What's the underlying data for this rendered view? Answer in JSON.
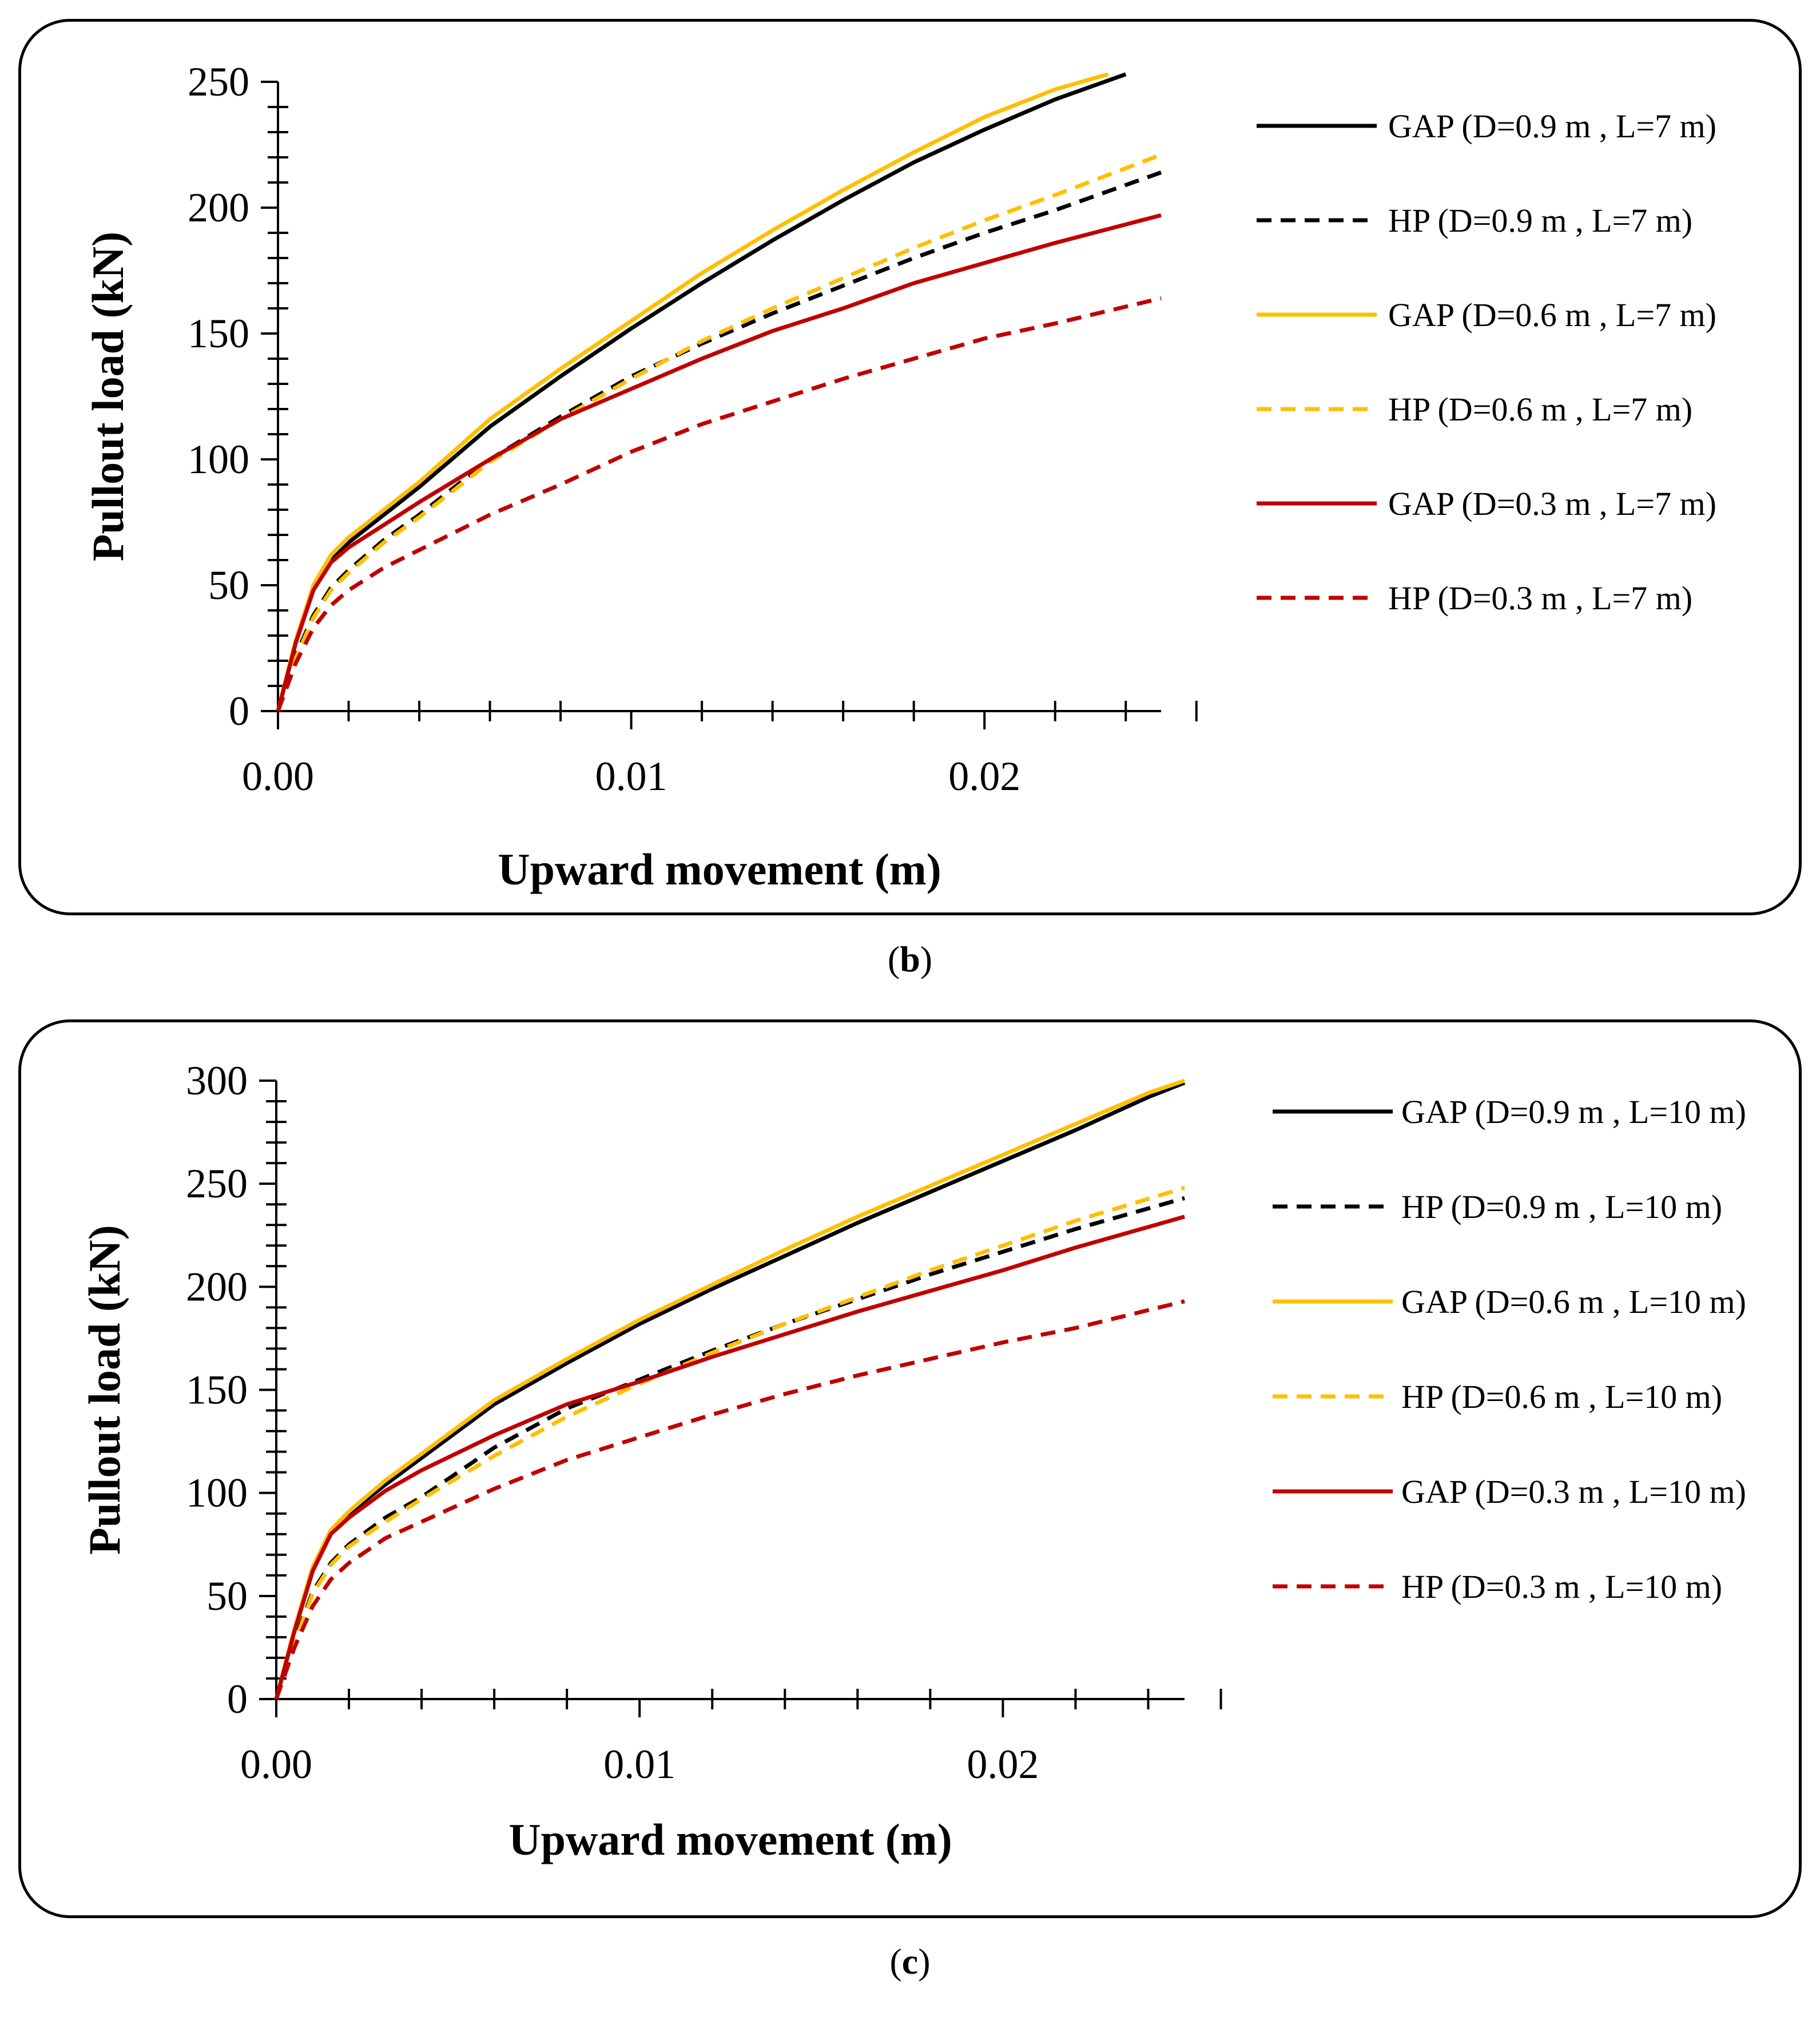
{
  "chart_data": [
    {
      "panel": "b",
      "type": "line",
      "caption_letter": "b",
      "xlabel": "Upward movement (m)",
      "ylabel": "Pullout load (kN)",
      "xlim": [
        0,
        0.025
      ],
      "ylim": [
        0,
        250
      ],
      "xticks": [
        0.0,
        0.01,
        0.02
      ],
      "xtick_labels": [
        "0.00",
        "0.01",
        "0.02"
      ],
      "xminor_step": 0.002,
      "yticks": [
        0,
        50,
        100,
        150,
        200,
        250
      ],
      "ytick_labels": [
        "0",
        "50",
        "100",
        "150",
        "200",
        "250"
      ],
      "yminor_step": 10,
      "legend_position": "right",
      "series": [
        {
          "name": "GAP (D=0.9 m , L=7 m)",
          "color": "#000000",
          "dash": "solid",
          "x": [
            0,
            0.0005,
            0.001,
            0.0015,
            0.002,
            0.003,
            0.004,
            0.006,
            0.008,
            0.01,
            0.012,
            0.014,
            0.016,
            0.018,
            0.02,
            0.022,
            0.024
          ],
          "y": [
            0,
            27,
            48,
            60,
            67,
            78,
            89,
            113,
            133,
            152,
            170,
            187,
            203,
            218,
            231,
            243,
            253
          ]
        },
        {
          "name": "HP (D=0.9 m , L=7 m)",
          "color": "#000000",
          "dash": "dashed",
          "x": [
            0,
            0.0005,
            0.001,
            0.0015,
            0.002,
            0.003,
            0.004,
            0.006,
            0.008,
            0.01,
            0.012,
            0.014,
            0.016,
            0.018,
            0.02,
            0.022,
            0.025
          ],
          "y": [
            0,
            22,
            38,
            49,
            56,
            68,
            78,
            100,
            117,
            133,
            146,
            158,
            169,
            180,
            190,
            199,
            214
          ]
        },
        {
          "name": "GAP (D=0.6 m , L=7 m)",
          "color": "#FFBF00",
          "dash": "solid",
          "x": [
            0,
            0.0005,
            0.001,
            0.0015,
            0.002,
            0.003,
            0.004,
            0.006,
            0.008,
            0.01,
            0.012,
            0.014,
            0.016,
            0.018,
            0.02,
            0.022,
            0.0235
          ],
          "y": [
            0,
            28,
            50,
            62,
            69,
            80,
            91,
            116,
            136,
            155,
            174,
            191,
            207,
            222,
            236,
            247,
            253
          ]
        },
        {
          "name": "HP (D=0.6 m , L=7 m)",
          "color": "#FFBF00",
          "dash": "dashed",
          "x": [
            0,
            0.0005,
            0.001,
            0.0015,
            0.002,
            0.003,
            0.004,
            0.006,
            0.008,
            0.01,
            0.012,
            0.014,
            0.016,
            0.018,
            0.02,
            0.022,
            0.025
          ],
          "y": [
            0,
            21,
            37,
            48,
            55,
            67,
            77,
            99,
            116,
            132,
            147,
            160,
            172,
            184,
            195,
            205,
            221
          ]
        },
        {
          "name": "GAP (D=0.3 m , L=7 m)",
          "color": "#C00000",
          "dash": "solid",
          "x": [
            0,
            0.0005,
            0.001,
            0.0015,
            0.002,
            0.003,
            0.004,
            0.006,
            0.008,
            0.01,
            0.012,
            0.014,
            0.016,
            0.018,
            0.02,
            0.022,
            0.025
          ],
          "y": [
            0,
            27,
            48,
            59,
            65,
            74,
            83,
            100,
            116,
            128,
            140,
            151,
            160,
            170,
            178,
            186,
            197
          ]
        },
        {
          "name": "HP (D=0.3 m , L=7 m)",
          "color": "#C00000",
          "dash": "dashed",
          "x": [
            0,
            0.0005,
            0.001,
            0.0015,
            0.002,
            0.003,
            0.004,
            0.006,
            0.008,
            0.01,
            0.012,
            0.014,
            0.016,
            0.018,
            0.02,
            0.022,
            0.025
          ],
          "y": [
            0,
            19,
            33,
            42,
            48,
            57,
            64,
            78,
            90,
            103,
            114,
            123,
            132,
            140,
            148,
            154,
            164
          ]
        }
      ]
    },
    {
      "panel": "c",
      "type": "line",
      "caption_letter": "c",
      "xlabel": "Upward movement (m)",
      "ylabel": "Pullout load (kN)",
      "xlim": [
        0,
        0.025
      ],
      "ylim": [
        0,
        300
      ],
      "xticks": [
        0.0,
        0.01,
        0.02
      ],
      "xtick_labels": [
        "0.00",
        "0.01",
        "0.02"
      ],
      "xminor_step": 0.002,
      "yticks": [
        0,
        50,
        100,
        150,
        200,
        250,
        300
      ],
      "ytick_labels": [
        "0",
        "50",
        "100",
        "150",
        "200",
        "250",
        "300"
      ],
      "yminor_step": 10,
      "legend_position": "right",
      "series": [
        {
          "name": "GAP (D=0.9 m , L=10 m)",
          "color": "#000000",
          "dash": "solid",
          "x": [
            0,
            0.0005,
            0.001,
            0.0015,
            0.002,
            0.003,
            0.004,
            0.006,
            0.008,
            0.01,
            0.012,
            0.014,
            0.016,
            0.018,
            0.02,
            0.022,
            0.024,
            0.025
          ],
          "y": [
            0,
            33,
            62,
            80,
            90,
            104,
            117,
            143,
            163,
            182,
            199,
            215,
            231,
            246,
            261,
            276,
            292,
            299
          ]
        },
        {
          "name": "HP (D=0.9 m , L=10 m)",
          "color": "#000000",
          "dash": "dashed",
          "x": [
            0,
            0.0005,
            0.001,
            0.0015,
            0.002,
            0.003,
            0.004,
            0.006,
            0.008,
            0.01,
            0.012,
            0.014,
            0.016,
            0.018,
            0.02,
            0.022,
            0.025
          ],
          "y": [
            0,
            28,
            52,
            66,
            75,
            88,
            98,
            122,
            141,
            155,
            169,
            182,
            194,
            206,
            217,
            228,
            243
          ]
        },
        {
          "name": "GAP (D=0.6 m , L=10 m)",
          "color": "#FFBF00",
          "dash": "solid",
          "x": [
            0,
            0.0005,
            0.001,
            0.0015,
            0.002,
            0.003,
            0.004,
            0.006,
            0.008,
            0.01,
            0.012,
            0.014,
            0.016,
            0.018,
            0.02,
            0.022,
            0.024,
            0.025
          ],
          "y": [
            0,
            34,
            64,
            82,
            91,
            106,
            119,
            145,
            165,
            184,
            201,
            218,
            234,
            249,
            264,
            279,
            294,
            300
          ]
        },
        {
          "name": "HP (D=0.6 m , L=10 m)",
          "color": "#FFBF00",
          "dash": "dashed",
          "x": [
            0,
            0.0005,
            0.001,
            0.0015,
            0.002,
            0.003,
            0.004,
            0.006,
            0.008,
            0.01,
            0.012,
            0.014,
            0.016,
            0.018,
            0.02,
            0.022,
            0.025
          ],
          "y": [
            0,
            27,
            51,
            65,
            74,
            86,
            97,
            118,
            137,
            153,
            168,
            182,
            195,
            208,
            220,
            232,
            248
          ]
        },
        {
          "name": "GAP (D=0.3 m , L=10 m)",
          "color": "#C00000",
          "dash": "solid",
          "x": [
            0,
            0.0005,
            0.001,
            0.0015,
            0.002,
            0.003,
            0.004,
            0.006,
            0.008,
            0.01,
            0.012,
            0.014,
            0.016,
            0.018,
            0.02,
            0.022,
            0.025
          ],
          "y": [
            0,
            33,
            62,
            80,
            88,
            101,
            111,
            128,
            143,
            154,
            166,
            177,
            188,
            198,
            208,
            219,
            234
          ]
        },
        {
          "name": "HP (D=0.3 m , L=10 m)",
          "color": "#C00000",
          "dash": "dashed",
          "x": [
            0,
            0.0005,
            0.001,
            0.0015,
            0.002,
            0.003,
            0.004,
            0.006,
            0.008,
            0.01,
            0.012,
            0.014,
            0.016,
            0.018,
            0.02,
            0.022,
            0.025
          ],
          "y": [
            0,
            25,
            45,
            58,
            66,
            78,
            86,
            102,
            116,
            127,
            138,
            148,
            157,
            165,
            173,
            180,
            193
          ]
        }
      ]
    }
  ]
}
